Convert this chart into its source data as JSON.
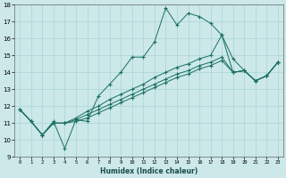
{
  "xlabel": "Humidex (Indice chaleur)",
  "xlim": [
    -0.5,
    23.5
  ],
  "ylim": [
    9,
    18
  ],
  "xtick_values": [
    0,
    1,
    2,
    3,
    4,
    5,
    6,
    7,
    8,
    9,
    10,
    11,
    12,
    13,
    14,
    15,
    16,
    17,
    18,
    19,
    20,
    21,
    22,
    23
  ],
  "ytick_values": [
    9,
    10,
    11,
    12,
    13,
    14,
    15,
    16,
    17,
    18
  ],
  "bg_color": "#cce8e8",
  "grid_color": "#aad4d4",
  "line_color": "#1a7060",
  "lines": [
    {
      "x": [
        0,
        1,
        2,
        3,
        4,
        5,
        6,
        7,
        8,
        9,
        10,
        11,
        12,
        13,
        14,
        15,
        16,
        17,
        18,
        19,
        20,
        21,
        22,
        23
      ],
      "y": [
        11.8,
        11.1,
        10.3,
        11.1,
        9.5,
        11.2,
        11.1,
        12.6,
        13.3,
        14.0,
        14.9,
        14.9,
        15.8,
        17.8,
        16.8,
        17.5,
        17.3,
        16.9,
        16.2,
        14.0,
        14.1,
        13.5,
        13.8,
        14.6
      ]
    },
    {
      "x": [
        0,
        1,
        2,
        3,
        4,
        5,
        6,
        7,
        8,
        9,
        10,
        11,
        12,
        13,
        14,
        15,
        16,
        17,
        18,
        19,
        20,
        21,
        22,
        23
      ],
      "y": [
        11.8,
        11.1,
        10.3,
        11.0,
        11.0,
        11.3,
        11.7,
        12.0,
        12.4,
        12.7,
        13.0,
        13.3,
        13.7,
        14.0,
        14.3,
        14.5,
        14.8,
        15.0,
        16.2,
        14.8,
        14.1,
        13.5,
        13.8,
        14.6
      ]
    },
    {
      "x": [
        0,
        1,
        2,
        3,
        4,
        5,
        6,
        7,
        8,
        9,
        10,
        11,
        12,
        13,
        14,
        15,
        16,
        17,
        18,
        19,
        20,
        21,
        22,
        23
      ],
      "y": [
        11.8,
        11.1,
        10.3,
        11.0,
        11.0,
        11.2,
        11.5,
        11.8,
        12.1,
        12.4,
        12.7,
        13.0,
        13.3,
        13.6,
        13.9,
        14.1,
        14.4,
        14.6,
        14.9,
        14.0,
        14.1,
        13.5,
        13.8,
        14.6
      ]
    },
    {
      "x": [
        0,
        1,
        2,
        3,
        4,
        5,
        6,
        7,
        8,
        9,
        10,
        11,
        12,
        13,
        14,
        15,
        16,
        17,
        18,
        19,
        20,
        21,
        22,
        23
      ],
      "y": [
        11.8,
        11.1,
        10.3,
        11.0,
        11.0,
        11.1,
        11.3,
        11.6,
        11.9,
        12.2,
        12.5,
        12.8,
        13.1,
        13.4,
        13.7,
        13.9,
        14.2,
        14.4,
        14.7,
        14.0,
        14.1,
        13.5,
        13.8,
        14.6
      ]
    }
  ]
}
